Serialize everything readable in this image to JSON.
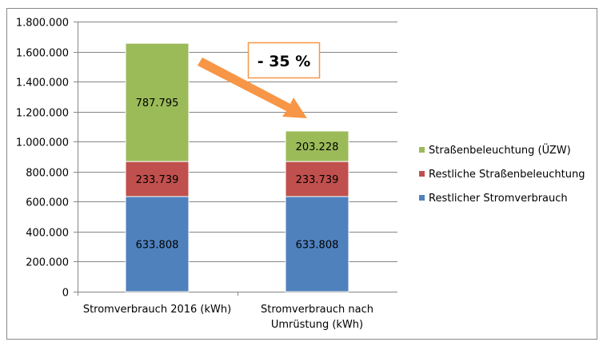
{
  "chart_data": {
    "type": "bar",
    "stacked": true,
    "categories": [
      "Stromverbrauch 2016 (kWh)",
      "Stromverbrauch nach Umrüstung (kWh)"
    ],
    "category_lines": [
      [
        "Stromverbrauch 2016 (kWh)"
      ],
      [
        "Stromverbrauch nach",
        "Umrüstung (kWh)"
      ]
    ],
    "series": [
      {
        "name": "Restlicher Stromverbrauch",
        "values": [
          633808,
          633808
        ],
        "labels": [
          "633.808",
          "633.808"
        ],
        "color": "#4f81bd"
      },
      {
        "name": "Restliche Straßenbeleuchtung",
        "values": [
          233739,
          233739
        ],
        "labels": [
          "233.739",
          "233.739"
        ],
        "color": "#c0504d"
      },
      {
        "name": "Straßenbeleuchtung (ÜZW)",
        "values": [
          787795,
          203228
        ],
        "labels": [
          "787.795",
          "203.228"
        ],
        "color": "#9bbb59"
      }
    ],
    "ylim": [
      0,
      1800000
    ],
    "yticks": [
      0,
      200000,
      400000,
      600000,
      800000,
      1000000,
      1200000,
      1400000,
      1600000,
      1800000
    ],
    "ytick_labels": [
      "0",
      "200.000",
      "400.000",
      "600.000",
      "800.000",
      "1.000.000",
      "1.200.000",
      "1.400.000",
      "1.600.000",
      "1.800.000"
    ],
    "grid": true,
    "legend_position": "right",
    "annotation": {
      "text": "- 35 %",
      "color": "#f79646"
    },
    "title": "",
    "xlabel": "",
    "ylabel": ""
  }
}
